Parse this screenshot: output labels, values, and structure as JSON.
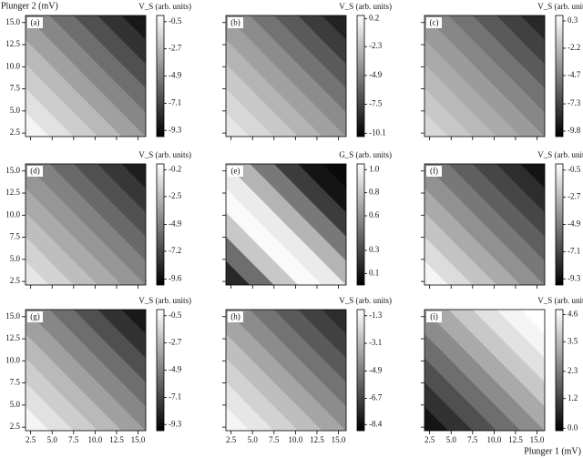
{
  "chart_data": [
    {
      "type": "heatmap",
      "panel_label": "(a)",
      "ylabel": "Plunger 2 (mV)",
      "colorbar_label": "V_S (arb. units)",
      "clim": [
        -9.8,
        0.0
      ],
      "cticks": [
        -0.5,
        -2.7,
        -4.9,
        -7.1,
        -9.3
      ],
      "xlim": [
        1.9,
        15.9
      ],
      "ylim": [
        2.1,
        15.8
      ],
      "yticks": [
        2.5,
        {
          "value": 5,
          "label": "5.0"
        },
        7.5,
        {
          "value": 10,
          "label": "10.0"
        },
        12.5,
        {
          "value": 15,
          "label": "15.0"
        }
      ]
    },
    {
      "type": "heatmap",
      "panel_label": "(b)",
      "colorbar_label": "V_S (arb. units)",
      "clim": [
        -10.4,
        0.5
      ],
      "cticks": [
        0.2,
        -2.3,
        -4.9,
        -7.5,
        -10.1
      ],
      "xlim": [
        1.9,
        15.9
      ],
      "ylim": [
        2.1,
        15.8
      ]
    },
    {
      "type": "heatmap",
      "panel_label": "(c)",
      "colorbar_label": "V_S (arb. units)",
      "clim": [
        -10.3,
        0.8
      ],
      "cticks": [
        0.3,
        -2.2,
        -4.7,
        -7.3,
        -9.8
      ],
      "xlim": [
        1.9,
        15.9
      ],
      "ylim": [
        2.1,
        15.8
      ]
    },
    {
      "type": "heatmap",
      "panel_label": "(d)",
      "colorbar_label": "V_S (arb. units)",
      "clim": [
        -10.1,
        0.3
      ],
      "cticks": [
        -0.2,
        -2.5,
        -4.9,
        -7.2,
        -9.6
      ],
      "xlim": [
        1.9,
        15.9
      ],
      "ylim": [
        2.1,
        15.8
      ],
      "yticks": [
        2.5,
        {
          "value": 5,
          "label": "5.0"
        },
        7.5,
        {
          "value": 10,
          "label": "10.0"
        },
        12.5,
        {
          "value": 15,
          "label": "15.0"
        }
      ]
    },
    {
      "type": "heatmap",
      "panel_label": "(e)",
      "colorbar_label": "G_S (arb. units)",
      "clim": [
        0.0,
        1.05
      ],
      "cticks": [
        {
          "value": 1,
          "label": "1.0"
        },
        0.8,
        0.6,
        0.3,
        0.1
      ],
      "xlim": [
        1.9,
        15.9
      ],
      "ylim": [
        2.1,
        15.8
      ]
    },
    {
      "type": "heatmap",
      "panel_label": "(f)",
      "colorbar_label": "V_S (arb. units)",
      "clim": [
        -9.8,
        0.0
      ],
      "cticks": [
        -0.5,
        -2.7,
        -4.9,
        -7.1,
        -9.3
      ],
      "xlim": [
        1.9,
        15.9
      ],
      "ylim": [
        2.1,
        15.8
      ]
    },
    {
      "type": "heatmap",
      "panel_label": "(g)",
      "colorbar_label": "V_S (arb. units)",
      "clim": [
        -9.8,
        0.0
      ],
      "cticks": [
        -0.5,
        -2.7,
        -4.9,
        -7.1,
        -9.3
      ],
      "xlim": [
        1.9,
        15.9
      ],
      "ylim": [
        2.1,
        15.8
      ],
      "xticks": [
        2.5,
        {
          "value": 5,
          "label": "5.0"
        },
        7.5,
        {
          "value": 10,
          "label": "10.0"
        },
        12.5,
        {
          "value": 15,
          "label": "15.0"
        }
      ],
      "yticks": [
        2.5,
        {
          "value": 5,
          "label": "5.0"
        },
        7.5,
        {
          "value": 10,
          "label": "10.0"
        },
        12.5,
        {
          "value": 15,
          "label": "15.0"
        }
      ]
    },
    {
      "type": "heatmap",
      "panel_label": "(h)",
      "colorbar_label": "V_S (arb. units)",
      "clim": [
        -8.8,
        -0.9
      ],
      "cticks": [
        -1.3,
        -3.1,
        -4.9,
        -6.7,
        -8.4
      ],
      "xlim": [
        1.9,
        15.9
      ],
      "ylim": [
        2.1,
        15.8
      ],
      "xticks": [
        2.5,
        {
          "value": 5,
          "label": "5.0"
        },
        7.5,
        {
          "value": 10,
          "label": "10.0"
        },
        12.5,
        {
          "value": 15,
          "label": "15.0"
        }
      ]
    },
    {
      "type": "heatmap",
      "panel_label": "(i)",
      "xlabel": "Plunger 1 (mV)",
      "colorbar_label": "V_S (arb. units)",
      "clim": [
        -0.1,
        4.8
      ],
      "cticks": [
        4.6,
        3.5,
        2.3,
        1.2,
        {
          "value": 0,
          "label": "0.0"
        }
      ],
      "xlim": [
        1.9,
        15.9
      ],
      "ylim": [
        2.1,
        15.8
      ],
      "xticks": [
        2.5,
        {
          "value": 5,
          "label": "5.0"
        },
        7.5,
        {
          "value": 10,
          "label": "10.0"
        },
        12.5,
        {
          "value": 15,
          "label": "15.0"
        }
      ]
    }
  ]
}
